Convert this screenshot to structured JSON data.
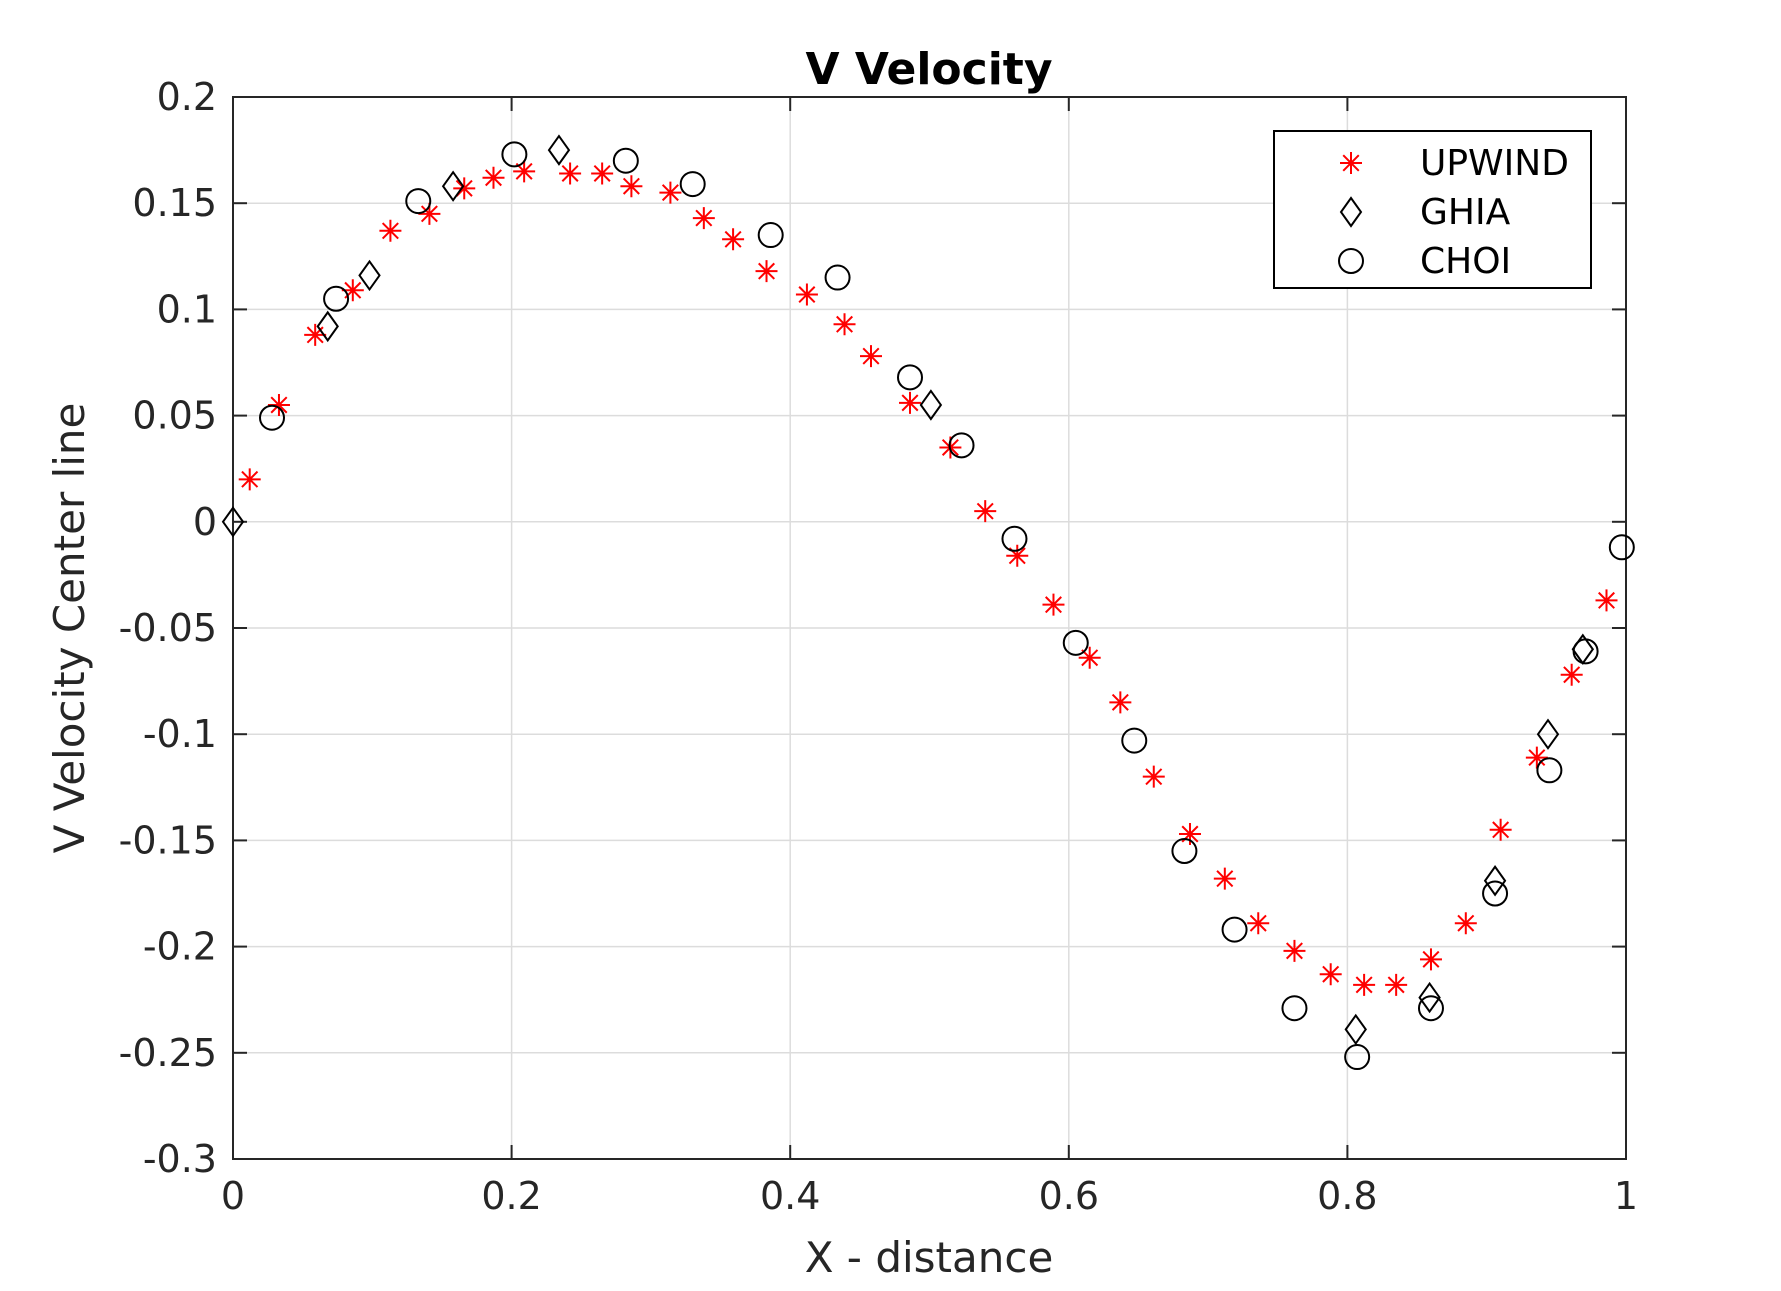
{
  "chart_data": {
    "type": "scatter",
    "title": "V Velocity",
    "xlabel": "X - distance",
    "ylabel": "V Velocity Center line",
    "xlim": [
      0,
      1
    ],
    "ylim": [
      -0.3,
      0.2
    ],
    "xticks": [
      0,
      0.2,
      0.4,
      0.6,
      0.8,
      1
    ],
    "xtick_labels": [
      "0",
      "0.2",
      "0.4",
      "0.6",
      "0.8",
      "1"
    ],
    "yticks": [
      -0.3,
      -0.25,
      -0.2,
      -0.15,
      -0.1,
      -0.05,
      0,
      0.05,
      0.1,
      0.15,
      0.2
    ],
    "ytick_labels": [
      "-0.3",
      "-0.25",
      "-0.2",
      "-0.15",
      "-0.1",
      "-0.05",
      "0",
      "0.05",
      "0.1",
      "0.15",
      "0.2"
    ],
    "grid": true,
    "legend_position": "top-right",
    "series": [
      {
        "name": "UPWIND",
        "marker": "asterisk",
        "color": "#ff0000",
        "x": [
          0.012,
          0.033,
          0.059,
          0.086,
          0.113,
          0.141,
          0.166,
          0.187,
          0.209,
          0.242,
          0.265,
          0.286,
          0.314,
          0.338,
          0.359,
          0.383,
          0.412,
          0.439,
          0.458,
          0.486,
          0.515,
          0.54,
          0.563,
          0.589,
          0.615,
          0.637,
          0.661,
          0.687,
          0.712,
          0.736,
          0.762,
          0.788,
          0.812,
          0.835,
          0.86,
          0.885,
          0.91,
          0.936,
          0.961,
          0.986
        ],
        "y": [
          0.02,
          0.055,
          0.088,
          0.109,
          0.137,
          0.145,
          0.157,
          0.162,
          0.165,
          0.164,
          0.164,
          0.158,
          0.155,
          0.143,
          0.133,
          0.118,
          0.107,
          0.093,
          0.078,
          0.056,
          0.035,
          0.005,
          -0.016,
          -0.039,
          -0.064,
          -0.085,
          -0.12,
          -0.147,
          -0.168,
          -0.189,
          -0.202,
          -0.213,
          -0.218,
          -0.218,
          -0.206,
          -0.189,
          -0.145,
          -0.111,
          -0.072,
          -0.037
        ]
      },
      {
        "name": "GHIA",
        "marker": "diamond",
        "color": "#000000",
        "x": [
          0.0,
          0.068,
          0.098,
          0.158,
          0.234,
          0.501,
          0.806,
          0.859,
          0.906,
          0.944,
          0.969
        ],
        "y": [
          0.0,
          0.092,
          0.116,
          0.158,
          0.175,
          0.055,
          -0.239,
          -0.224,
          -0.169,
          -0.1,
          -0.06
        ]
      },
      {
        "name": "CHOI",
        "marker": "circle",
        "color": "#000000",
        "x": [
          0.028,
          0.074,
          0.133,
          0.202,
          0.282,
          0.33,
          0.386,
          0.434,
          0.486,
          0.523,
          0.561,
          0.605,
          0.647,
          0.683,
          0.719,
          0.762,
          0.807,
          0.86,
          0.906,
          0.945,
          0.971,
          0.997
        ],
        "y": [
          0.049,
          0.105,
          0.151,
          0.173,
          0.17,
          0.159,
          0.135,
          0.115,
          0.068,
          0.036,
          -0.008,
          -0.057,
          -0.103,
          -0.155,
          -0.192,
          -0.229,
          -0.252,
          -0.229,
          -0.175,
          -0.117,
          -0.061,
          -0.012
        ]
      }
    ]
  }
}
